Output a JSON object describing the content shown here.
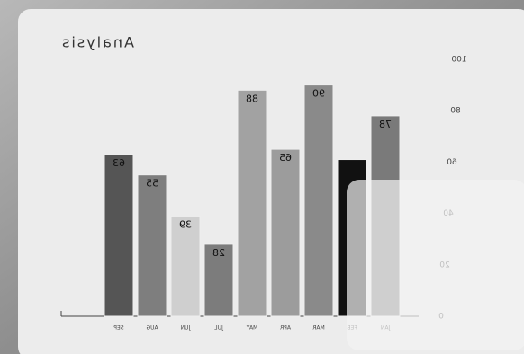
{
  "chart_data": {
    "type": "bar",
    "title": "Analysis",
    "categories": [
      "JAN",
      "FEB",
      "MAR",
      "APR",
      "MAY",
      "JUL",
      "JUN",
      "AUG",
      "SEP"
    ],
    "values": [
      78,
      61,
      90,
      65,
      88,
      28,
      39,
      55,
      63
    ],
    "value_labels": [
      "78",
      null,
      "90",
      "65",
      "88",
      "28",
      "39",
      "55",
      "63"
    ],
    "colors": [
      "#7a7a7a",
      "#111111",
      "#8a8a8a",
      "#9c9c9c",
      "#a2a2a2",
      "#7c7c7c",
      "#cfcfcf",
      "#7e7e7e",
      "#555555"
    ],
    "ylim": [
      0,
      100
    ],
    "yticks": [
      0,
      20,
      40,
      60,
      80,
      100
    ],
    "mirrored": true
  }
}
